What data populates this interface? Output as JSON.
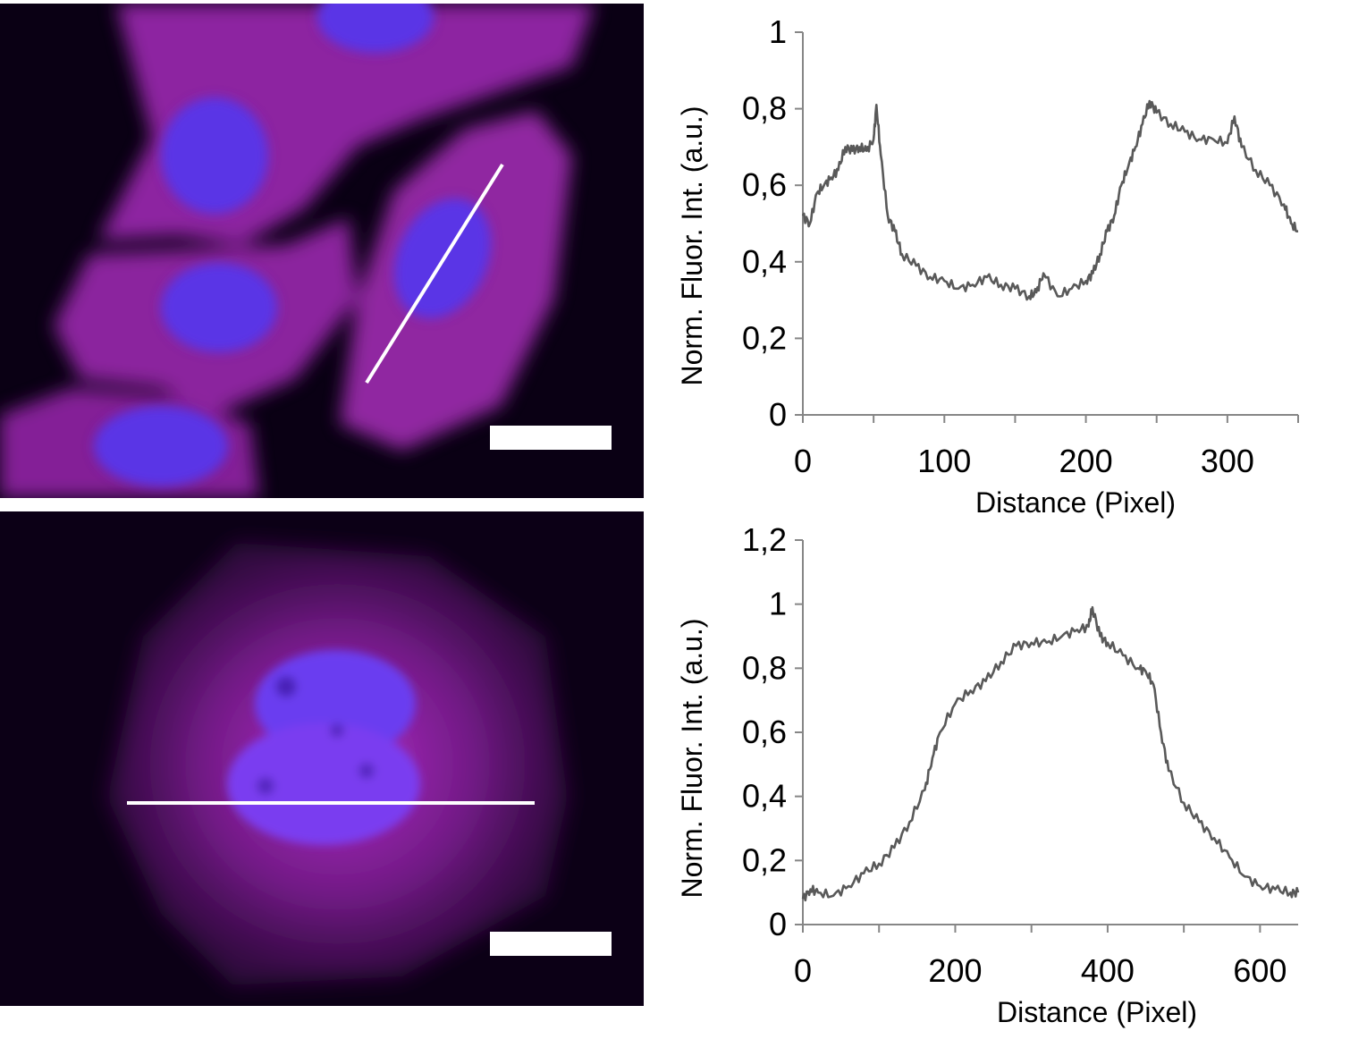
{
  "panels": [
    {
      "image": {
        "description_icon": "fluorescence-micrograph-icon",
        "colors": {
          "cytoplasm": "#b030c8",
          "nucleus": "#5533e8",
          "line": "#ffffff",
          "scalebar": "#ffffff"
        }
      },
      "chart": {
        "ylabel": "Norm. Fluor. Int. (a.u.)",
        "xlabel": "Distance (Pixel)",
        "ytick_labels": [
          "0",
          "0,2",
          "0,4",
          "0,6",
          "0,8",
          "1"
        ],
        "xtick_labels": [
          "0",
          "100",
          "200",
          "300"
        ]
      }
    },
    {
      "image": {
        "description_icon": "fluorescence-micrograph-icon",
        "colors": {
          "cytoplasm": "#a028b8",
          "nucleus": "#6a38f0",
          "line": "#ffffff",
          "scalebar": "#ffffff"
        }
      },
      "chart": {
        "ylabel": "Norm. Fluor. Int. (a.u.)",
        "xlabel": "Distance (Pixel)",
        "ytick_labels": [
          "0",
          "0,2",
          "0,4",
          "0,6",
          "0,8",
          "1",
          "1,2"
        ],
        "xtick_labels": [
          "0",
          "200",
          "400",
          "600"
        ]
      }
    }
  ],
  "chart_data": [
    {
      "type": "line",
      "xlabel": "Distance (Pixel)",
      "ylabel": "Norm. Fluor. Int. (a.u.)",
      "xlim": [
        0,
        350
      ],
      "ylim": [
        0,
        1
      ],
      "xticks": [
        0,
        100,
        200,
        300
      ],
      "yticks": [
        0,
        0.2,
        0.4,
        0.6,
        0.8,
        1
      ],
      "grid": false,
      "line_color": "#595959",
      "series": [
        {
          "x": [
            0,
            5,
            10,
            15,
            20,
            25,
            30,
            35,
            40,
            45,
            50,
            52,
            55,
            60,
            65,
            70,
            80,
            90,
            100,
            110,
            120,
            130,
            140,
            150,
            160,
            165,
            170,
            180,
            190,
            200,
            205,
            210,
            215,
            220,
            225,
            230,
            235,
            240,
            245,
            250,
            260,
            270,
            280,
            290,
            300,
            305,
            310,
            320,
            330,
            340,
            345,
            350
          ],
          "values": [
            0.52,
            0.5,
            0.58,
            0.6,
            0.62,
            0.64,
            0.7,
            0.69,
            0.7,
            0.69,
            0.72,
            0.81,
            0.68,
            0.52,
            0.48,
            0.42,
            0.39,
            0.36,
            0.35,
            0.33,
            0.34,
            0.36,
            0.34,
            0.33,
            0.31,
            0.32,
            0.37,
            0.31,
            0.33,
            0.35,
            0.37,
            0.42,
            0.48,
            0.52,
            0.6,
            0.65,
            0.7,
            0.76,
            0.82,
            0.79,
            0.76,
            0.74,
            0.72,
            0.72,
            0.71,
            0.78,
            0.7,
            0.64,
            0.6,
            0.55,
            0.5,
            0.48
          ]
        }
      ]
    },
    {
      "type": "line",
      "xlabel": "Distance (Pixel)",
      "ylabel": "Norm. Fluor. Int. (a.u.)",
      "xlim": [
        0,
        650
      ],
      "ylim": [
        0,
        1.2
      ],
      "xticks": [
        0,
        200,
        400,
        600
      ],
      "yticks": [
        0,
        0.2,
        0.4,
        0.6,
        0.8,
        1,
        1.2
      ],
      "grid": false,
      "line_color": "#595959",
      "series": [
        {
          "x": [
            0,
            10,
            20,
            40,
            60,
            80,
            100,
            120,
            140,
            160,
            170,
            180,
            200,
            220,
            240,
            260,
            280,
            300,
            320,
            340,
            360,
            375,
            380,
            390,
            400,
            420,
            440,
            450,
            460,
            470,
            480,
            500,
            520,
            540,
            560,
            580,
            600,
            620,
            640,
            650
          ],
          "values": [
            0.08,
            0.11,
            0.1,
            0.09,
            0.12,
            0.16,
            0.19,
            0.24,
            0.32,
            0.42,
            0.52,
            0.6,
            0.69,
            0.73,
            0.76,
            0.82,
            0.87,
            0.88,
            0.88,
            0.9,
            0.92,
            0.93,
            0.99,
            0.9,
            0.88,
            0.84,
            0.8,
            0.79,
            0.75,
            0.6,
            0.48,
            0.38,
            0.32,
            0.27,
            0.21,
            0.15,
            0.12,
            0.11,
            0.1,
            0.1
          ]
        }
      ]
    }
  ]
}
